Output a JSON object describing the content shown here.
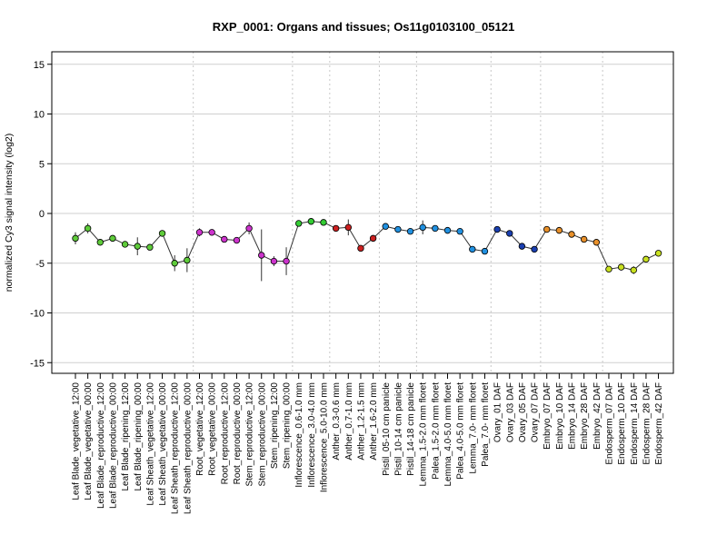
{
  "chart_data": {
    "type": "line",
    "title": "RXP_0001: Organs and tissues; Os11g0103100_05121",
    "xlabel": "",
    "ylabel": "normalized Cy3 signal intensity (log2)",
    "ylim": [
      -16,
      16
    ],
    "yticks": [
      -15,
      -10,
      -5,
      0,
      5,
      10,
      15
    ],
    "grid": "horizontal at y ticks; dotted vertical separators between tissue groups",
    "categories": [
      "Leaf Blade_vegetative_12:00",
      "Leaf Blade_vegetative_00:00",
      "Leaf Blade_reproductive_12:00",
      "Leaf Blade_reproductive_00:00",
      "Leaf Blade_ripening_12:00",
      "Leaf Blade_ripening_00:00",
      "Leaf Sheath_vegetative_12:00",
      "Leaf Sheath_vegetative_00:00",
      "Leaf Sheath_reproductive_12:00",
      "Leaf Sheath_reproductive_00:00",
      "Root_vegetative_12:00",
      "Root_vegetative_00:00",
      "Root_reproductive_12:00",
      "Root_reproductive_00:00",
      "Stem_reproductive_12:00",
      "Stem_reproductive_00:00",
      "Stem_ripening_12:00",
      "Stem_ripening_00:00",
      "Inflorescence_0.6-1.0 mm",
      "Inflorescence_3.0-4.0 mm",
      "Inflorescence_5.0-10.0 mm",
      "Anther_0.3-0.6 mm",
      "Anther_0.7-1.0 mm",
      "Anther_1.2-1.5 mm",
      "Anther_1.6-2.0 mm",
      "Pistil_05-10 cm panicle",
      "Pistil_10-14 cm panicle",
      "Pistil_14-18 cm panicle",
      "Lemma_1.5-2.0 mm floret",
      "Palea_1.5-2.0 mm floret",
      "Lemma_4.0-5.0 mm floret",
      "Palea_4.0-5.0 mm floret",
      "Lemma_7.0- mm floret",
      "Palea_7.0- mm floret",
      "Ovary_01 DAF",
      "Ovary_03 DAF",
      "Ovary_05 DAF",
      "Ovary_07 DAF",
      "Embryo_07 DAF",
      "Embryo_10 DAF",
      "Embryo_14 DAF",
      "Embryo_28 DAF",
      "Embryo_42 DAF",
      "Endosperm_07 DAF",
      "Endosperm_10 DAF",
      "Endosperm_14 DAF",
      "Endosperm_28 DAF",
      "Endosperm_42 DAF"
    ],
    "values": [
      -2.5,
      -1.5,
      -2.9,
      -2.5,
      -3.1,
      -3.3,
      -3.4,
      -2.0,
      -5.0,
      -4.7,
      -1.9,
      -1.9,
      -2.6,
      -2.7,
      -1.5,
      -4.2,
      -4.8,
      -4.8,
      -1.0,
      -0.8,
      -0.9,
      -1.5,
      -1.4,
      -3.5,
      -2.5,
      -1.3,
      -1.6,
      -1.8,
      -1.4,
      -1.5,
      -1.7,
      -1.8,
      -3.6,
      -3.8,
      -1.6,
      -2.0,
      -3.3,
      -3.6,
      -1.6,
      -1.7,
      -2.1,
      -2.6,
      -2.9,
      -5.6,
      -5.4,
      -5.7,
      -4.6,
      -4.0
    ],
    "errors": [
      0.6,
      0.5,
      0.2,
      0.3,
      0.2,
      0.9,
      0.2,
      0.3,
      0.8,
      1.2,
      0.4,
      0.3,
      0.3,
      0.2,
      0.6,
      2.6,
      0.5,
      1.4,
      0.3,
      0.2,
      0.2,
      0.3,
      0.8,
      0.3,
      0.3,
      0.2,
      0.2,
      0.2,
      0.7,
      0.3,
      0.2,
      0.2,
      0.2,
      0.2,
      0.3,
      0.3,
      0.2,
      0.2,
      0.2,
      0.2,
      0.2,
      0.2,
      0.2,
      0.2,
      0.3,
      0.4,
      0.3,
      0.3
    ],
    "colors": [
      "#5ecb3a",
      "#5ecb3a",
      "#5ecb3a",
      "#5ecb3a",
      "#5ecb3a",
      "#5ecb3a",
      "#5ecb3a",
      "#5ecb3a",
      "#5ecb3a",
      "#5ecb3a",
      "#cc33cc",
      "#cc33cc",
      "#cc33cc",
      "#cc33cc",
      "#cc33cc",
      "#cc33cc",
      "#cc33cc",
      "#cc33cc",
      "#33cc33",
      "#33cc33",
      "#33cc33",
      "#cc2020",
      "#cc2020",
      "#cc2020",
      "#cc2020",
      "#2090e0",
      "#2090e0",
      "#2090e0",
      "#2090e0",
      "#2090e0",
      "#2090e0",
      "#2090e0",
      "#2090e0",
      "#2090e0",
      "#1a3fb0",
      "#1a3fb0",
      "#1a3fb0",
      "#1a3fb0",
      "#e8902a",
      "#e8902a",
      "#e8902a",
      "#e8902a",
      "#e8902a",
      "#c8e020",
      "#c8e020",
      "#c8e020",
      "#c8e020",
      "#c8e020"
    ],
    "group_separators_after_index": [
      9,
      17,
      20,
      24,
      27,
      33,
      37,
      42
    ]
  }
}
